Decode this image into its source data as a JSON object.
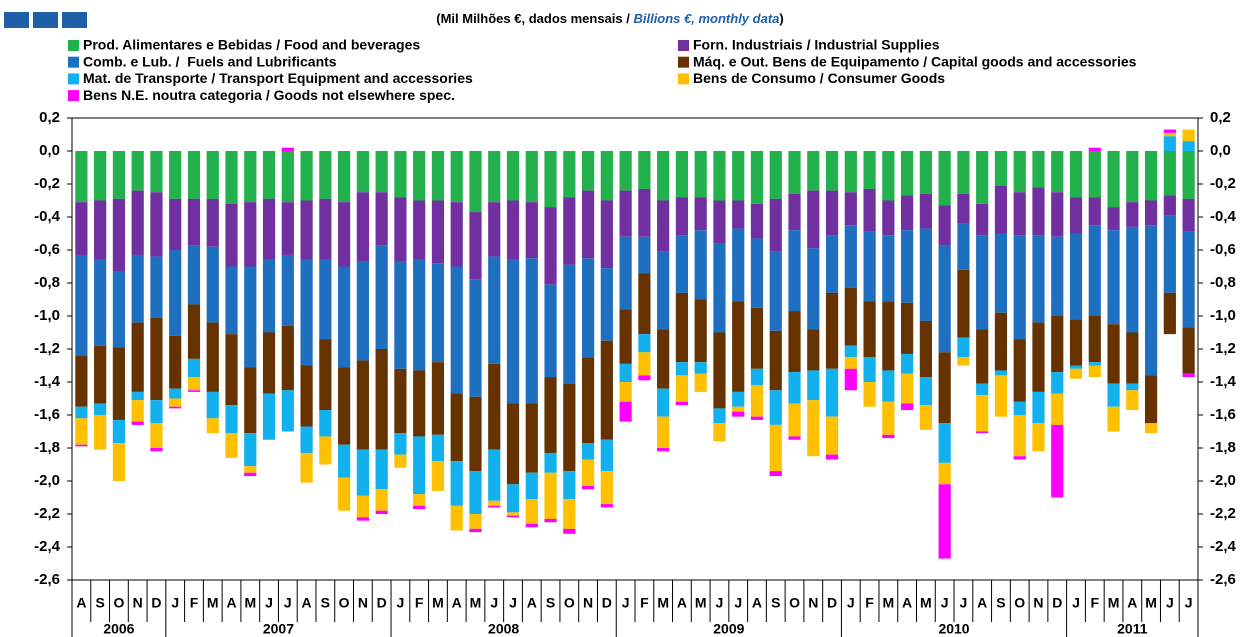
{
  "chart_data": {
    "type": "stacked-bar",
    "title": [
      "(Mil Milhões €, dados mensais / ",
      "Billions €, monthly data",
      ")"
    ],
    "categories": [
      "A",
      "S",
      "O",
      "N",
      "D",
      "J",
      "F",
      "M",
      "A",
      "M",
      "J",
      "J",
      "A",
      "S",
      "O",
      "N",
      "D",
      "J",
      "F",
      "M",
      "A",
      "M",
      "J",
      "J",
      "A",
      "S",
      "O",
      "N",
      "D",
      "J",
      "F",
      "M",
      "A",
      "M",
      "J",
      "J",
      "A",
      "S",
      "O",
      "N",
      "D",
      "J",
      "F",
      "M",
      "A",
      "M",
      "J",
      "J",
      "A",
      "S",
      "O",
      "N",
      "D",
      "J",
      "F",
      "M",
      "A",
      "M",
      "J",
      "J"
    ],
    "years": [
      "2006",
      "2007",
      "2008",
      "2009",
      "2010",
      "2011"
    ],
    "ylim": [
      -2.6,
      0.2
    ],
    "yticks": [
      {
        "value": 0.2,
        "label": "0,2"
      },
      {
        "value": 0,
        "label": "0,0"
      },
      {
        "value": -0.2,
        "label": "-0,2"
      },
      {
        "value": -0.4,
        "label": "-0,4"
      },
      {
        "value": -0.6,
        "label": "-0,6"
      },
      {
        "value": -0.8,
        "label": "-0,8"
      },
      {
        "value": -1,
        "label": "-1,0"
      },
      {
        "value": -1.2,
        "label": "-1,2"
      },
      {
        "value": -1.4,
        "label": "-1,4"
      },
      {
        "value": -1.6,
        "label": "-1,6"
      },
      {
        "value": -1.8,
        "label": "-1,8"
      },
      {
        "value": -2,
        "label": "-2,0"
      },
      {
        "value": -2.2,
        "label": "-2,2"
      },
      {
        "value": -2.4,
        "label": "-2,4"
      },
      {
        "value": -2.6,
        "label": "-2,6"
      }
    ],
    "ticks_both_sides": true,
    "series": [
      {
        "name": "Prod. Alimentares e Bebidas / Food and beverages",
        "color": "#22b14c",
        "values": [
          -0.31,
          -0.3,
          -0.29,
          -0.24,
          -0.25,
          -0.29,
          -0.29,
          -0.29,
          -0.32,
          -0.31,
          -0.29,
          -0.31,
          -0.3,
          -0.29,
          -0.31,
          -0.25,
          -0.25,
          -0.28,
          -0.3,
          -0.3,
          -0.31,
          -0.37,
          -0.31,
          -0.3,
          -0.31,
          -0.34,
          -0.28,
          -0.24,
          -0.3,
          -0.24,
          -0.23,
          -0.3,
          -0.28,
          -0.28,
          -0.3,
          -0.3,
          -0.32,
          -0.29,
          -0.26,
          -0.24,
          -0.24,
          -0.25,
          -0.23,
          -0.3,
          -0.27,
          -0.26,
          -0.33,
          -0.26,
          -0.32,
          -0.21,
          -0.25,
          -0.22,
          -0.25,
          -0.28,
          -0.28,
          -0.34,
          -0.31,
          -0.3,
          -0.27,
          -0.29
        ]
      },
      {
        "name": "Forn. Industriais / Industrial Supplies",
        "color": "#7030a0",
        "values": [
          -0.32,
          -0.36,
          -0.44,
          -0.39,
          -0.39,
          -0.31,
          -0.28,
          -0.29,
          -0.38,
          -0.39,
          -0.37,
          -0.32,
          -0.36,
          -0.37,
          -0.39,
          -0.42,
          -0.32,
          -0.39,
          -0.36,
          -0.38,
          -0.39,
          -0.41,
          -0.33,
          -0.36,
          -0.34,
          -0.47,
          -0.41,
          -0.41,
          -0.41,
          -0.28,
          -0.29,
          -0.31,
          -0.23,
          -0.2,
          -0.26,
          -0.17,
          -0.21,
          -0.32,
          -0.22,
          -0.35,
          -0.27,
          -0.2,
          -0.26,
          -0.21,
          -0.21,
          -0.21,
          -0.24,
          -0.18,
          -0.19,
          -0.29,
          -0.26,
          -0.29,
          -0.27,
          -0.22,
          -0.17,
          -0.14,
          -0.15,
          -0.15,
          -0.12,
          -0.2
        ]
      },
      {
        "name": "Comb. e Lub. /  Fuels and Lubrificants",
        "color": "#1f6fc0",
        "values": [
          -0.61,
          -0.52,
          -0.46,
          -0.41,
          -0.37,
          -0.52,
          -0.36,
          -0.46,
          -0.41,
          -0.61,
          -0.44,
          -0.43,
          -0.64,
          -0.48,
          -0.61,
          -0.6,
          -0.63,
          -0.65,
          -0.67,
          -0.6,
          -0.77,
          -0.71,
          -0.65,
          -0.87,
          -0.88,
          -0.56,
          -0.72,
          -0.6,
          -0.44,
          -0.44,
          -0.22,
          -0.47,
          -0.35,
          -0.42,
          -0.54,
          -0.44,
          -0.42,
          -0.48,
          -0.49,
          -0.49,
          -0.35,
          -0.38,
          -0.42,
          -0.4,
          -0.44,
          -0.56,
          -0.65,
          -0.28,
          -0.57,
          -0.48,
          -0.63,
          -0.53,
          -0.48,
          -0.52,
          -0.55,
          -0.57,
          -0.64,
          -0.91,
          -0.47,
          -0.58
        ]
      },
      {
        "name": "Máq. e Out. Bens de Equipamento / Capital goods and accessories",
        "color": "#663300",
        "values": [
          -0.31,
          -0.35,
          -0.44,
          -0.42,
          -0.5,
          -0.32,
          -0.33,
          -0.42,
          -0.43,
          -0.4,
          -0.37,
          -0.39,
          -0.37,
          -0.43,
          -0.47,
          -0.54,
          -0.61,
          -0.39,
          -0.4,
          -0.44,
          -0.41,
          -0.45,
          -0.52,
          -0.49,
          -0.42,
          -0.46,
          -0.53,
          -0.52,
          -0.6,
          -0.33,
          -0.37,
          -0.36,
          -0.42,
          -0.38,
          -0.46,
          -0.55,
          -0.37,
          -0.36,
          -0.37,
          -0.25,
          -0.46,
          -0.35,
          -0.34,
          -0.42,
          -0.31,
          -0.34,
          -0.43,
          -0.41,
          -0.33,
          -0.35,
          -0.38,
          -0.42,
          -0.34,
          -0.28,
          -0.28,
          -0.36,
          -0.31,
          -0.29,
          -0.25,
          -0.28
        ]
      },
      {
        "name": "Mat. de Transporte / Transport Equipment and accessories",
        "color": "#12b0ec",
        "values": [
          -0.07,
          -0.07,
          -0.14,
          -0.05,
          -0.14,
          -0.06,
          -0.11,
          -0.16,
          -0.17,
          -0.2,
          -0.28,
          -0.25,
          -0.16,
          -0.16,
          -0.2,
          -0.28,
          -0.24,
          -0.13,
          -0.35,
          -0.16,
          -0.27,
          -0.26,
          -0.31,
          -0.17,
          -0.16,
          -0.12,
          -0.17,
          -0.1,
          -0.19,
          -0.11,
          -0.11,
          -0.17,
          -0.08,
          -0.07,
          -0.09,
          -0.09,
          -0.1,
          -0.21,
          -0.19,
          -0.18,
          -0.29,
          -0.07,
          -0.15,
          -0.19,
          -0.12,
          -0.17,
          -0.24,
          -0.12,
          -0.07,
          -0.03,
          -0.08,
          -0.19,
          -0.13,
          -0.02,
          -0.02,
          -0.14,
          -0.04,
          0,
          0.09,
          0.06
        ]
      },
      {
        "name": "Bens de Consumo / Consumer Goods",
        "color": "#ffc000",
        "values": [
          -0.16,
          -0.21,
          -0.23,
          -0.13,
          -0.15,
          -0.05,
          -0.08,
          -0.09,
          -0.15,
          -0.04,
          0,
          0,
          -0.18,
          -0.17,
          -0.2,
          -0.13,
          -0.13,
          -0.08,
          -0.07,
          -0.18,
          -0.15,
          -0.09,
          -0.03,
          -0.02,
          -0.15,
          -0.28,
          -0.18,
          -0.16,
          -0.2,
          -0.12,
          -0.14,
          -0.19,
          -0.16,
          -0.11,
          -0.11,
          -0.03,
          -0.19,
          -0.28,
          -0.2,
          -0.34,
          -0.23,
          -0.07,
          -0.15,
          -0.2,
          -0.18,
          -0.15,
          -0.13,
          -0.05,
          -0.22,
          -0.25,
          -0.25,
          -0.17,
          -0.19,
          -0.06,
          -0.07,
          -0.15,
          -0.12,
          -0.06,
          0.02,
          0.07
        ]
      },
      {
        "name": "Bens N.E. noutra categoria / Goods not elsewhere spec.",
        "color": "#ff00ff",
        "values": [
          -0.01,
          0,
          0,
          -0.02,
          -0.02,
          -0.01,
          -0.01,
          0,
          0,
          -0.02,
          0,
          0.02,
          0,
          0,
          0,
          -0.02,
          -0.02,
          0,
          -0.02,
          0,
          0,
          -0.02,
          -0.01,
          -0.01,
          -0.02,
          -0.02,
          -0.03,
          -0.02,
          -0.02,
          -0.12,
          -0.03,
          -0.02,
          -0.02,
          0,
          0,
          -0.03,
          -0.02,
          -0.03,
          -0.02,
          0,
          -0.03,
          -0.13,
          0,
          -0.02,
          -0.04,
          0,
          -0.45,
          0,
          -0.01,
          0,
          -0.02,
          0,
          -0.44,
          0,
          0.02,
          0,
          0,
          0,
          0.02,
          -0.02
        ]
      }
    ]
  }
}
